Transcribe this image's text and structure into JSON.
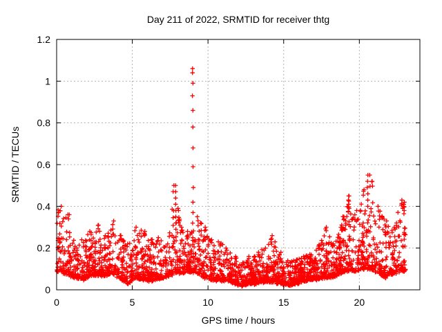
{
  "figure": {
    "background": "#ffffff"
  },
  "chart_data": {
    "type": "scatter",
    "title": "Day 211 of 2022, SRMTID for receiver thtg",
    "xlabel": "GPS time / hours",
    "ylabel": "SRMTID / TECUs",
    "xlim": [
      0,
      24
    ],
    "ylim": [
      0,
      1.2
    ],
    "xticks": [
      0,
      5,
      10,
      15,
      20
    ],
    "yticks": [
      0,
      0.2,
      0.4,
      0.6,
      0.8,
      1,
      1.2
    ],
    "grid": true,
    "grid_style": "dashed",
    "grid_color": "#b0b0b0",
    "axis_color": "#000000",
    "marker": "plus",
    "marker_color": "#ff0000",
    "marker_size": 3.2,
    "legend": "none",
    "x_data_range": [
      0.02,
      23.05
    ],
    "samples_per_half_hour": 56,
    "band_envelope_bins": [
      [
        0.0,
        0.5,
        0.09,
        0.4
      ],
      [
        0.5,
        1.0,
        0.07,
        0.36
      ],
      [
        1.0,
        1.5,
        0.06,
        0.2
      ],
      [
        1.5,
        2.0,
        0.05,
        0.24
      ],
      [
        2.0,
        2.5,
        0.07,
        0.28
      ],
      [
        2.5,
        3.0,
        0.07,
        0.31
      ],
      [
        3.0,
        3.5,
        0.07,
        0.26
      ],
      [
        3.5,
        4.0,
        0.08,
        0.33
      ],
      [
        4.0,
        4.5,
        0.05,
        0.26
      ],
      [
        4.5,
        5.0,
        0.03,
        0.22
      ],
      [
        5.0,
        5.5,
        0.06,
        0.3
      ],
      [
        5.5,
        6.0,
        0.05,
        0.28
      ],
      [
        6.0,
        6.5,
        0.04,
        0.24
      ],
      [
        6.5,
        7.0,
        0.05,
        0.25
      ],
      [
        7.0,
        7.5,
        0.06,
        0.22
      ],
      [
        7.5,
        8.0,
        0.08,
        0.5
      ],
      [
        8.0,
        8.5,
        0.08,
        0.3
      ],
      [
        8.5,
        9.0,
        0.09,
        0.28
      ],
      [
        9.0,
        9.5,
        0.08,
        0.35
      ],
      [
        9.5,
        10.0,
        0.06,
        0.3
      ],
      [
        10.0,
        10.5,
        0.05,
        0.24
      ],
      [
        10.5,
        11.0,
        0.04,
        0.23
      ],
      [
        11.0,
        11.5,
        0.05,
        0.2
      ],
      [
        11.5,
        12.0,
        0.03,
        0.16
      ],
      [
        12.0,
        12.5,
        0.02,
        0.13
      ],
      [
        12.5,
        13.0,
        0.03,
        0.16
      ],
      [
        13.0,
        13.5,
        0.03,
        0.18
      ],
      [
        13.5,
        14.0,
        0.04,
        0.2
      ],
      [
        14.0,
        14.5,
        0.04,
        0.26
      ],
      [
        14.5,
        15.0,
        0.03,
        0.18
      ],
      [
        15.0,
        15.5,
        0.02,
        0.14
      ],
      [
        15.5,
        16.0,
        0.03,
        0.14
      ],
      [
        16.0,
        16.5,
        0.04,
        0.16
      ],
      [
        16.5,
        17.0,
        0.05,
        0.17
      ],
      [
        17.0,
        17.5,
        0.05,
        0.2
      ],
      [
        17.5,
        18.0,
        0.06,
        0.3
      ],
      [
        18.0,
        18.5,
        0.06,
        0.22
      ],
      [
        18.5,
        19.0,
        0.08,
        0.3
      ],
      [
        19.0,
        19.5,
        0.09,
        0.45
      ],
      [
        19.5,
        20.0,
        0.09,
        0.38
      ],
      [
        20.0,
        20.5,
        0.1,
        0.48
      ],
      [
        20.5,
        21.0,
        0.1,
        0.55
      ],
      [
        21.0,
        21.5,
        0.08,
        0.4
      ],
      [
        21.5,
        22.0,
        0.06,
        0.33
      ],
      [
        22.0,
        22.5,
        0.08,
        0.3
      ],
      [
        22.5,
        23.1,
        0.09,
        0.43
      ]
    ],
    "spike_columns": [
      {
        "x": 9.0,
        "values": [
          1.06,
          1.04,
          0.99,
          0.93,
          0.86,
          0.78,
          0.68,
          0.59,
          0.49,
          0.42,
          0.37,
          0.32
        ]
      },
      {
        "x": 7.86,
        "values": [
          0.5,
          0.47,
          0.44,
          0.41,
          0.38,
          0.35,
          0.32,
          0.29
        ]
      },
      {
        "x": 20.55,
        "values": [
          0.55,
          0.52,
          0.49,
          0.46,
          0.43,
          0.4
        ]
      },
      {
        "x": 19.3,
        "values": [
          0.45,
          0.43,
          0.41,
          0.39
        ]
      },
      {
        "x": 22.95,
        "values": [
          0.42,
          0.4,
          0.38
        ]
      }
    ]
  }
}
